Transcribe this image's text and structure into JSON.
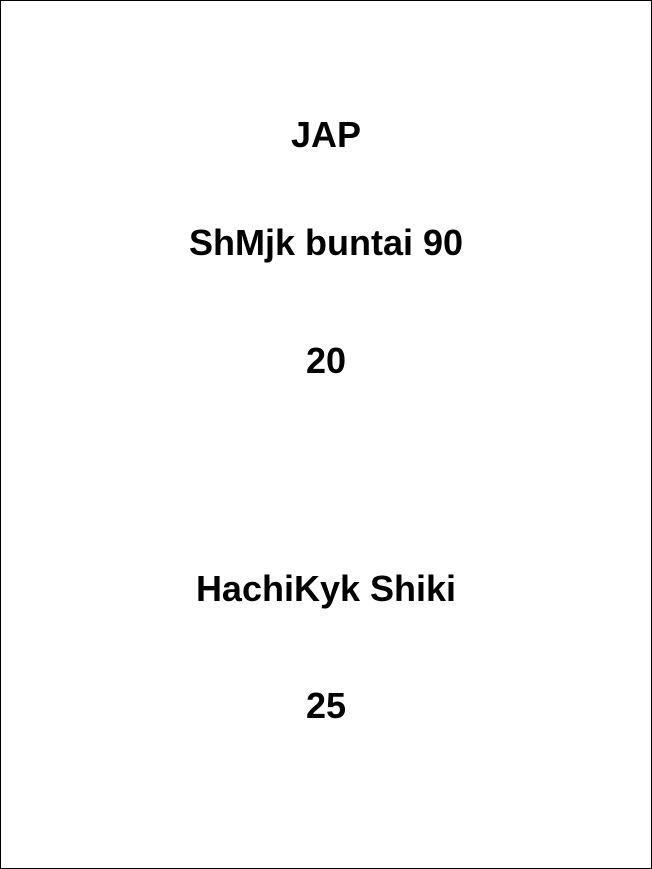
{
  "lines": [
    "JAP",
    "ShMjk buntai 90",
    "20",
    "HachiKyk Shiki",
    "25"
  ]
}
